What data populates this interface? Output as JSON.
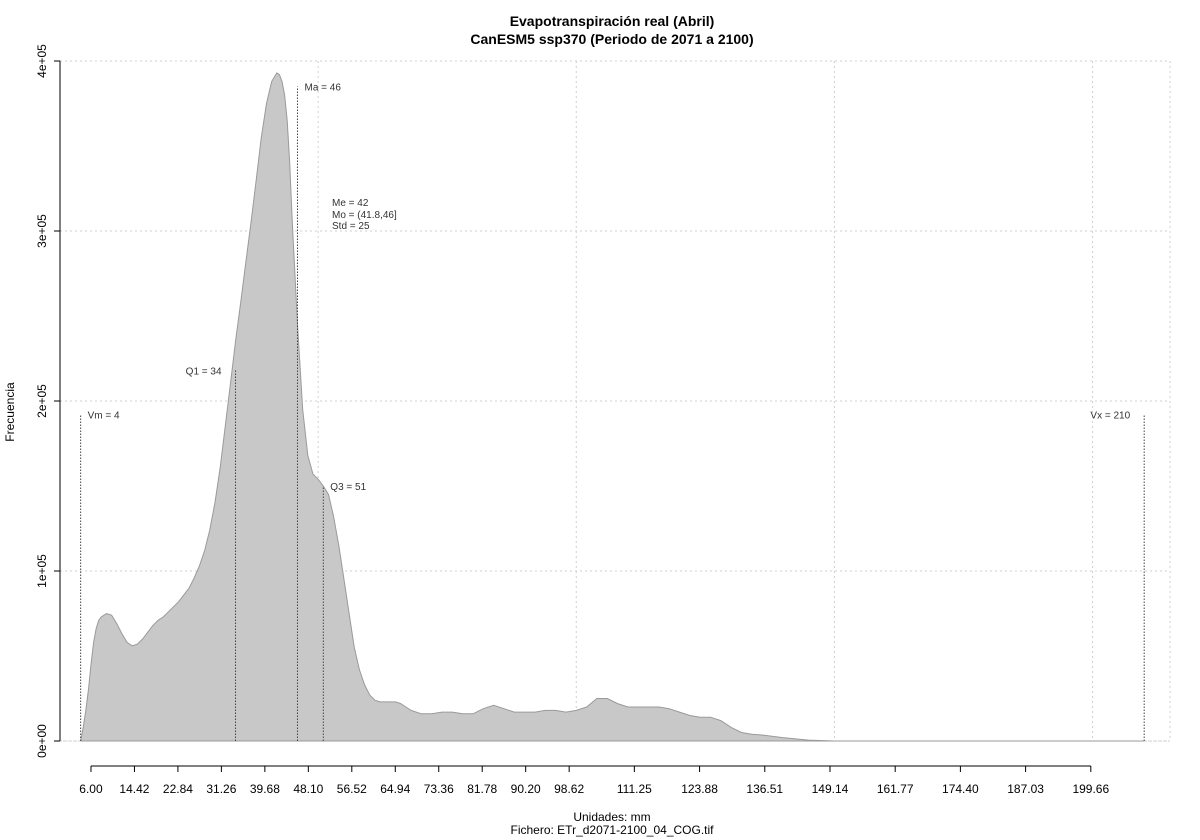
{
  "chart_data": {
    "type": "area",
    "title": "Evapotranspiración real (Abril)",
    "subtitle": "CanESM5 ssp370 (Periodo de 2071 a 2100)",
    "xlabel": "Unidades: mm",
    "caption": "Fichero: ETr_d2071-2100_04_COG.tif",
    "ylabel": "Frecuencia",
    "xlim": [
      0,
      215
    ],
    "ylim": [
      0,
      400000
    ],
    "grid": true,
    "fill_color": "#c8c8c8",
    "x_ticks": [
      6.0,
      14.42,
      22.84,
      31.26,
      39.68,
      48.1,
      56.52,
      64.94,
      73.36,
      81.78,
      90.2,
      98.62,
      111.25,
      123.88,
      136.51,
      149.14,
      161.77,
      174.4,
      187.03,
      199.66
    ],
    "x_tick_labels": [
      "6.00",
      "14.42",
      "22.84",
      "31.26",
      "39.68",
      "48.10",
      "56.52",
      "64.94",
      "73.36",
      "81.78",
      "90.20",
      "98.62",
      "111.25",
      "123.88",
      "136.51",
      "149.14",
      "161.77",
      "174.40",
      "187.03",
      "199.66"
    ],
    "y_ticks": [
      0,
      100000,
      200000,
      300000,
      400000
    ],
    "y_tick_labels": [
      "0e+00",
      "1e+05",
      "2e+05",
      "3e+05",
      "4e+05"
    ],
    "x_grid": [
      0,
      50,
      100,
      150,
      200
    ],
    "density": {
      "x": [
        4,
        4.5,
        5,
        5.5,
        6,
        6.5,
        7,
        7.5,
        8,
        9,
        10,
        11,
        12,
        13,
        14,
        15,
        16,
        17,
        18,
        19,
        20,
        21,
        22,
        23,
        24,
        25,
        26,
        27,
        28,
        29,
        30,
        31,
        32,
        33,
        34,
        35,
        36,
        37,
        38,
        39,
        40,
        41,
        42,
        42.5,
        43,
        43.5,
        44,
        44.5,
        45,
        46,
        47,
        48,
        49,
        50,
        51,
        52,
        53,
        54,
        55,
        56,
        57,
        58,
        59,
        60,
        61,
        62,
        63,
        64,
        65,
        66,
        67,
        68,
        70,
        72,
        74,
        76,
        78,
        80,
        82,
        84,
        86,
        88,
        90,
        92,
        94,
        96,
        98,
        100,
        102,
        104,
        106,
        108,
        110,
        112,
        114,
        116,
        118,
        120,
        122,
        124,
        126,
        128,
        130,
        132,
        134,
        136,
        140,
        145,
        150,
        160,
        170,
        180,
        190,
        200,
        210
      ],
      "y": [
        0,
        8000,
        18000,
        30000,
        45000,
        58000,
        66000,
        71000,
        73000,
        75000,
        74000,
        69000,
        63000,
        58000,
        56000,
        57000,
        60000,
        64000,
        68000,
        71000,
        73000,
        76000,
        79000,
        82000,
        86000,
        90000,
        96000,
        103000,
        112000,
        124000,
        140000,
        160000,
        185000,
        210000,
        235000,
        258000,
        282000,
        305000,
        330000,
        355000,
        375000,
        388000,
        393000,
        392000,
        388000,
        380000,
        365000,
        340000,
        305000,
        245000,
        195000,
        168000,
        157000,
        154000,
        150000,
        145000,
        132000,
        115000,
        95000,
        75000,
        55000,
        42000,
        33000,
        27000,
        24000,
        23000,
        23000,
        23000,
        23000,
        22000,
        20000,
        18000,
        16000,
        16000,
        17000,
        17000,
        16000,
        16000,
        19000,
        21000,
        19000,
        17000,
        17000,
        17000,
        18000,
        18000,
        17000,
        18000,
        20000,
        25000,
        25000,
        22000,
        20000,
        20000,
        20000,
        20000,
        19000,
        17000,
        15000,
        14000,
        14000,
        12000,
        8000,
        5000,
        4000,
        3500,
        2000,
        500,
        0,
        0,
        0,
        0,
        0,
        0,
        0
      ]
    },
    "markers": [
      {
        "label": "Vm = 4",
        "x": 4,
        "y_top": 192000,
        "label_side": "right"
      },
      {
        "label": "Q1 = 34",
        "x": 34,
        "y_top": 218000,
        "label_side": "left"
      },
      {
        "label": "Ma = 46",
        "x": 46,
        "y_top": 385000,
        "label_side": "right"
      },
      {
        "label": "Q3 = 51",
        "x": 51,
        "y_top": 150000,
        "label_side": "right"
      },
      {
        "label": "Vx = 210",
        "x": 210,
        "y_top": 192000,
        "label_side": "left"
      }
    ],
    "stats_text": [
      "Me = 42",
      "Mo = (41.8,46]",
      "Std = 25"
    ]
  }
}
